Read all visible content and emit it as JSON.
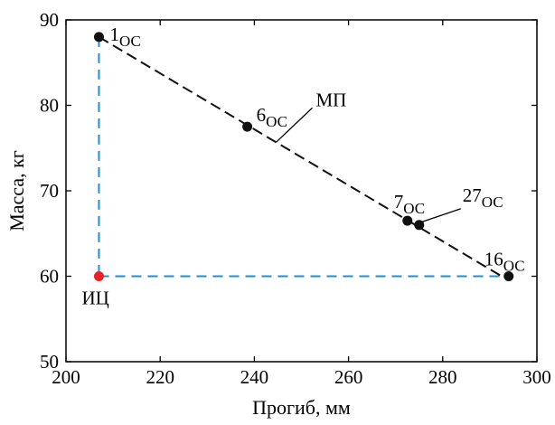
{
  "chart_data": {
    "type": "scatter",
    "xlabel": "Прогиб, мм",
    "ylabel": "Масса, кг",
    "xlim": [
      200,
      300
    ],
    "ylim": [
      50,
      90
    ],
    "xticks": [
      200,
      220,
      240,
      260,
      280,
      300
    ],
    "yticks": [
      50,
      60,
      70,
      80,
      90
    ],
    "grid": false,
    "points": [
      {
        "label": "1",
        "subscript": "ОС",
        "x": 207,
        "y": 88,
        "color": "#111111"
      },
      {
        "label": "6",
        "subscript": "ОС",
        "x": 238.5,
        "y": 77.5,
        "color": "#111111"
      },
      {
        "label": "7",
        "subscript": "ОС",
        "x": 272.5,
        "y": 66.5,
        "color": "#111111"
      },
      {
        "label": "27",
        "subscript": "ОС",
        "x": 275,
        "y": 66,
        "color": "#111111"
      },
      {
        "label": "16",
        "subscript": "ОС",
        "x": 294,
        "y": 60,
        "color": "#111111"
      },
      {
        "label": "ИЦ",
        "subscript": "",
        "x": 207,
        "y": 60,
        "color": "#e8202a"
      }
    ],
    "lines": [
      {
        "name": "МП",
        "from": [
          207,
          88
        ],
        "to": [
          292.5,
          60
        ],
        "style": "dashed",
        "color": "#111111"
      }
    ],
    "guides": [
      {
        "from": [
          207,
          88
        ],
        "to": [
          207,
          60
        ],
        "style": "dashed",
        "color": "#1f8fd6"
      },
      {
        "from": [
          207,
          60
        ],
        "to": [
          292.5,
          60
        ],
        "style": "dashed",
        "color": "#1f8fd6"
      }
    ]
  }
}
